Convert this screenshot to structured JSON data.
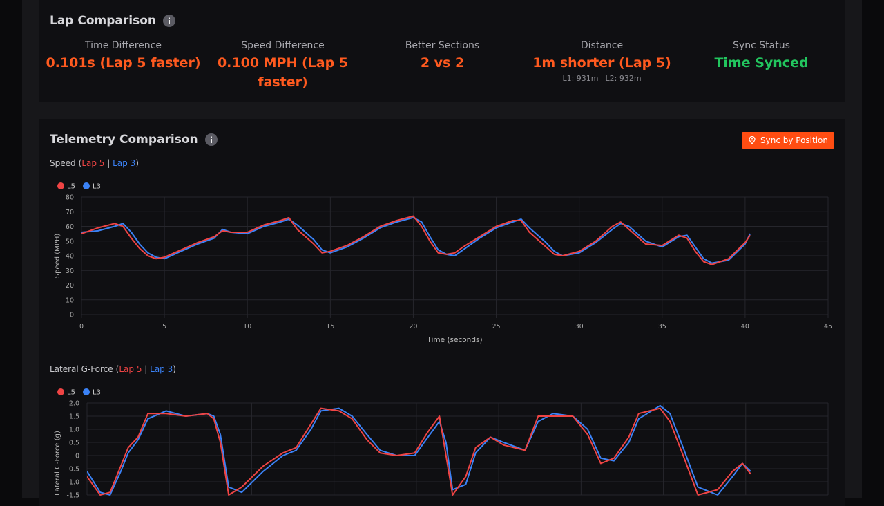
{
  "lap_comparison": {
    "title": "Lap Comparison",
    "metrics": [
      {
        "label": "Time Difference",
        "value": "0.101s (Lap 5 faster)",
        "color": "#ff5a1f"
      },
      {
        "label": "Speed Difference",
        "value": "0.100 MPH (Lap 5 faster)",
        "color": "#ff5a1f"
      },
      {
        "label": "Better Sections",
        "value": "2 vs 2",
        "color": "#ff5a1f"
      },
      {
        "label": "Distance",
        "value": "1m shorter (Lap 5)",
        "color": "#ff5a1f",
        "details": [
          "L1: 931m",
          "L2: 932m"
        ]
      },
      {
        "label": "Sync Status",
        "value": "Time Synced",
        "color": "#22c55e"
      }
    ]
  },
  "telemetry": {
    "title": "Telemetry Comparison",
    "button": "Sync by Position",
    "charts": [
      {
        "type": "line",
        "label": "Speed",
        "lap_labels": [
          "Lap 5",
          "Lap 3"
        ],
        "xlabel": "Time (seconds)",
        "ylabel": "Speed (MPH)",
        "x": [
          0,
          1,
          2,
          2.5,
          3,
          3.5,
          4,
          4.5,
          5,
          6,
          7,
          8,
          8.5,
          9,
          10,
          11,
          12,
          12.5,
          13,
          14,
          14.5,
          15,
          16,
          17,
          18,
          19,
          20,
          20.5,
          21,
          21.5,
          22,
          22.5,
          23,
          24,
          25,
          26,
          26.5,
          27,
          28,
          28.5,
          29,
          30,
          31,
          32,
          32.5,
          33,
          34,
          35,
          36,
          36.5,
          37,
          37.5,
          38,
          39,
          40,
          40.3
        ],
        "series": [
          {
            "name": "L5",
            "color": "#ef4444",
            "values": [
              55,
              59,
              62,
              60,
              52,
              45,
              40,
              38,
              39,
              44,
              49,
              53,
              57,
              56,
              56,
              61,
              64,
              66,
              58,
              48,
              42,
              43,
              47,
              53,
              60,
              64,
              67,
              60,
              50,
              42,
              41,
              42,
              46,
              53,
              60,
              64,
              64,
              56,
              46,
              41,
              40,
              43,
              50,
              60,
              63,
              58,
              48,
              47,
              54,
              52,
              43,
              36,
              34,
              38,
              49,
              54
            ]
          },
          {
            "name": "L3",
            "color": "#3b82f6",
            "values": [
              56,
              57,
              60,
              62,
              56,
              48,
              42,
              39,
              38,
              43,
              48,
              52,
              58,
              56,
              55,
              60,
              63,
              65,
              61,
              51,
              44,
              42,
              46,
              52,
              59,
              63,
              66,
              63,
              53,
              44,
              41,
              40,
              44,
              52,
              59,
              63,
              65,
              59,
              49,
              43,
              40,
              42,
              49,
              58,
              62,
              60,
              50,
              46,
              53,
              54,
              46,
              38,
              35,
              37,
              48,
              55
            ]
          }
        ],
        "xlim": [
          0,
          45
        ],
        "xticks": [
          0,
          5,
          10,
          15,
          20,
          25,
          30,
          35,
          40,
          45
        ],
        "ylim": [
          0,
          80
        ],
        "yticks": [
          0,
          10,
          20,
          30,
          40,
          50,
          60,
          70,
          80
        ],
        "grid": true
      },
      {
        "type": "line",
        "label": "Lateral G-Force",
        "lap_labels": [
          "Lap 5",
          "Lap 3"
        ],
        "ylabel": "Lateral G-Force (g)",
        "x": [
          0,
          0.8,
          1.4,
          2.05,
          2.5,
          3.1,
          3.7,
          4.8,
          6,
          7.3,
          7.7,
          8.1,
          8.6,
          9.4,
          10.7,
          11.9,
          12.7,
          13.6,
          14.2,
          15.3,
          16.1,
          17,
          17.8,
          18.8,
          19.9,
          20.7,
          21.4,
          21.8,
          22.2,
          23,
          23.6,
          24.5,
          25.3,
          26.6,
          27.4,
          28.3,
          29.5,
          30.4,
          31.2,
          32,
          32.9,
          33.5,
          34.8,
          35.4,
          36.2,
          37.1,
          38.3,
          39.2,
          39.8,
          40.3
        ],
        "series": [
          {
            "name": "L5",
            "color": "#ef4444",
            "values": [
              -0.8,
              -1.5,
              -1.4,
              -0.4,
              0.3,
              0.7,
              1.6,
              1.6,
              1.5,
              1.6,
              1.4,
              0.5,
              -1.5,
              -1.2,
              -0.4,
              0.1,
              0.3,
              1.2,
              1.8,
              1.7,
              1.4,
              0.6,
              0.1,
              0,
              0.1,
              0.9,
              1.5,
              0,
              -1.5,
              -0.8,
              0.3,
              0.7,
              0.4,
              0.2,
              1.5,
              1.5,
              1.5,
              0.8,
              -0.3,
              -0.1,
              0.7,
              1.6,
              1.8,
              1.3,
              0,
              -1.5,
              -1.3,
              -0.6,
              -0.3,
              -0.7
            ]
          },
          {
            "name": "L3",
            "color": "#3b82f6",
            "values": [
              -0.6,
              -1.4,
              -1.5,
              -0.6,
              0.1,
              0.6,
              1.4,
              1.7,
              1.5,
              1.6,
              1.5,
              0.8,
              -1.2,
              -1.4,
              -0.6,
              0,
              0.2,
              1.0,
              1.7,
              1.8,
              1.5,
              0.8,
              0.2,
              0,
              0,
              0.7,
              1.3,
              0.5,
              -1.3,
              -1.1,
              0.1,
              0.7,
              0.5,
              0.2,
              1.3,
              1.6,
              1.5,
              1.0,
              -0.1,
              -0.2,
              0.5,
              1.4,
              1.9,
              1.6,
              0.3,
              -1.2,
              -1.5,
              -0.8,
              -0.3,
              -0.6
            ]
          }
        ],
        "xlim": [
          0,
          45
        ],
        "ylim": [
          -1.5,
          2
        ],
        "yticks": [
          {
            "value": 2,
            "label": "2.0"
          },
          1.5,
          {
            "value": 1,
            "label": "1.0"
          },
          0.5,
          0,
          -0.5,
          {
            "value": -1,
            "label": "-1.0"
          },
          -1.5
        ],
        "grid": true
      }
    ]
  }
}
